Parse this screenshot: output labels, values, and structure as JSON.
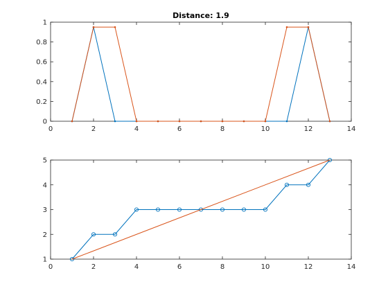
{
  "chart_data": [
    {
      "type": "line",
      "title": "Distance: 1.9",
      "xlabel": "",
      "ylabel": "",
      "xlim": [
        0,
        14
      ],
      "ylim": [
        0,
        1
      ],
      "xticks": [
        0,
        2,
        4,
        6,
        8,
        10,
        12,
        14
      ],
      "yticks": [
        0,
        0.2,
        0.4,
        0.6,
        0.8,
        1
      ],
      "ytick_labels": [
        "0",
        "0.2",
        "0.4",
        "0.6",
        "0.8",
        "1"
      ],
      "grid": false,
      "series": [
        {
          "color": "#0072BD",
          "marker": "dot",
          "x": [
            1,
            2,
            3,
            4,
            5,
            6,
            7,
            8,
            9,
            10,
            11,
            12,
            13
          ],
          "y": [
            0,
            0.95,
            0,
            0,
            0,
            0,
            0,
            0,
            0,
            0,
            0,
            0.95,
            0
          ]
        },
        {
          "color": "#D95319",
          "marker": "dot",
          "x": [
            1,
            2,
            3,
            4,
            5,
            6,
            7,
            8,
            9,
            10,
            11,
            12,
            13
          ],
          "y": [
            0,
            0.95,
            0.95,
            0,
            0,
            0,
            0,
            0,
            0,
            0,
            0.95,
            0.95,
            0
          ]
        }
      ]
    },
    {
      "type": "line",
      "title": "",
      "xlabel": "",
      "ylabel": "",
      "xlim": [
        0,
        14
      ],
      "ylim": [
        1,
        5
      ],
      "xticks": [
        0,
        2,
        4,
        6,
        8,
        10,
        12,
        14
      ],
      "yticks": [
        1,
        2,
        3,
        4,
        5
      ],
      "ytick_labels": [
        "1",
        "2",
        "3",
        "4",
        "5"
      ],
      "grid": false,
      "series": [
        {
          "color": "#0072BD",
          "marker": "circle",
          "x": [
            1,
            2,
            3,
            4,
            5,
            6,
            7,
            8,
            9,
            10,
            11,
            12,
            13
          ],
          "y": [
            1,
            2,
            2,
            3,
            3,
            3,
            3,
            3,
            3,
            3,
            4,
            4,
            5
          ]
        },
        {
          "color": "#D95319",
          "marker": "none",
          "x": [
            1,
            13
          ],
          "y": [
            1,
            5
          ]
        }
      ]
    }
  ]
}
